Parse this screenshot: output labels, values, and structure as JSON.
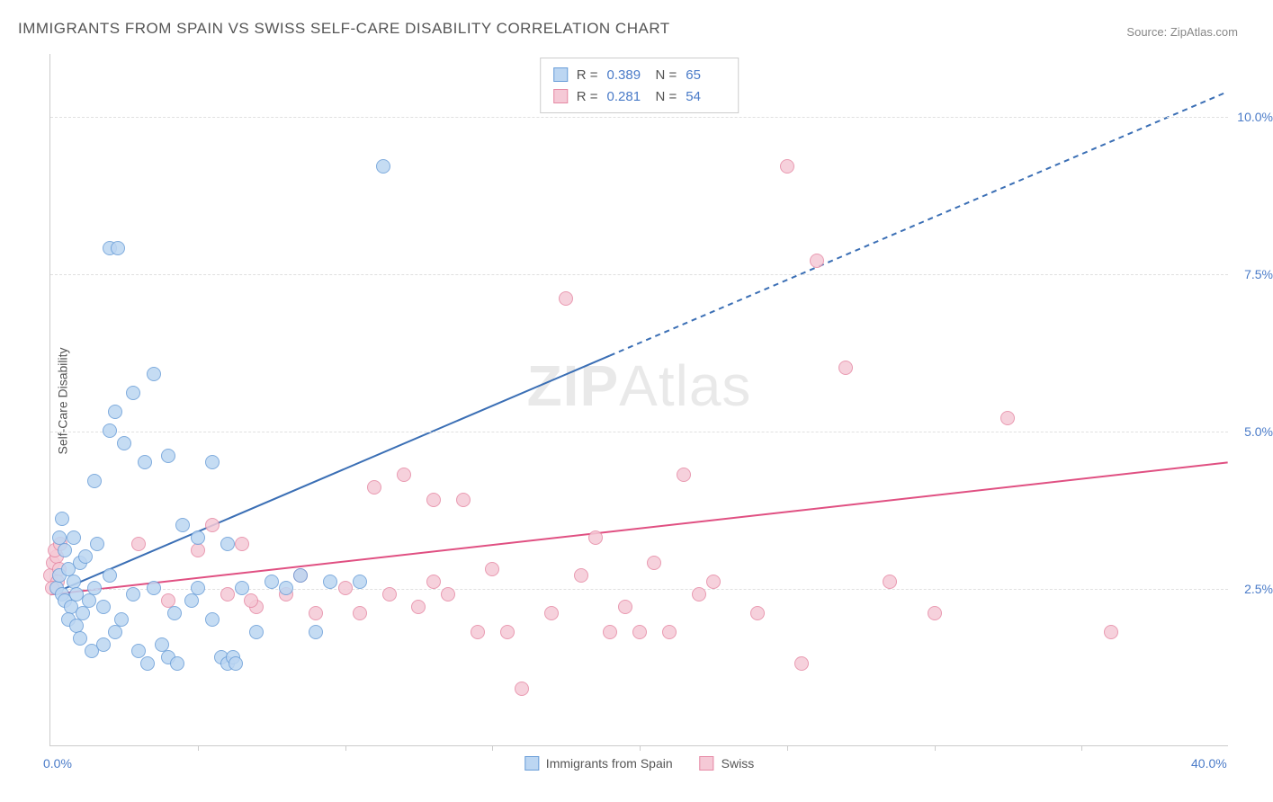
{
  "title": "IMMIGRANTS FROM SPAIN VS SWISS SELF-CARE DISABILITY CORRELATION CHART",
  "source_label": "Source:",
  "source_name": "ZipAtlas.com",
  "ylabel": "Self-Care Disability",
  "watermark_a": "ZIP",
  "watermark_b": "Atlas",
  "xlim": [
    0,
    40
  ],
  "ylim": [
    0,
    11
  ],
  "xtick_labels": [
    "0.0%",
    "40.0%"
  ],
  "xtick_positions": [
    0,
    40
  ],
  "xtick_marks": [
    5,
    10,
    15,
    20,
    25,
    30,
    35
  ],
  "ytick_labels": [
    "2.5%",
    "5.0%",
    "7.5%",
    "10.0%"
  ],
  "ytick_positions": [
    2.5,
    5.0,
    7.5,
    10.0
  ],
  "series": {
    "a": {
      "label": "Immigrants from Spain",
      "fill": "#bcd6f2",
      "stroke": "#6a9ed8",
      "R": "0.389",
      "N": "65",
      "trend": {
        "x1": 0,
        "y1": 2.4,
        "x2": 19,
        "y2": 6.2,
        "dash_to_x": 40,
        "dash_to_y": 10.4,
        "color": "#3b6fb5",
        "width": 2
      },
      "points": [
        [
          0.2,
          2.5
        ],
        [
          0.3,
          2.7
        ],
        [
          0.4,
          2.4
        ],
        [
          0.5,
          2.3
        ],
        [
          0.6,
          2.8
        ],
        [
          0.7,
          2.2
        ],
        [
          0.8,
          2.6
        ],
        [
          0.9,
          2.4
        ],
        [
          1.0,
          2.9
        ],
        [
          1.1,
          2.1
        ],
        [
          0.5,
          3.1
        ],
        [
          0.8,
          3.3
        ],
        [
          1.2,
          3.0
        ],
        [
          0.6,
          2.0
        ],
        [
          0.9,
          1.9
        ],
        [
          1.3,
          2.3
        ],
        [
          1.5,
          2.5
        ],
        [
          1.8,
          2.2
        ],
        [
          2.0,
          2.7
        ],
        [
          2.2,
          1.8
        ],
        [
          1.0,
          1.7
        ],
        [
          1.4,
          1.5
        ],
        [
          1.8,
          1.6
        ],
        [
          2.4,
          2.0
        ],
        [
          2.8,
          2.4
        ],
        [
          3.0,
          1.5
        ],
        [
          3.3,
          1.3
        ],
        [
          3.8,
          1.6
        ],
        [
          4.2,
          2.1
        ],
        [
          4.8,
          2.3
        ],
        [
          1.5,
          4.2
        ],
        [
          2.0,
          5.0
        ],
        [
          2.2,
          5.3
        ],
        [
          2.5,
          4.8
        ],
        [
          2.8,
          5.6
        ],
        [
          3.2,
          4.5
        ],
        [
          3.5,
          5.9
        ],
        [
          4.0,
          4.6
        ],
        [
          4.5,
          3.5
        ],
        [
          5.0,
          3.3
        ],
        [
          5.5,
          2.0
        ],
        [
          5.8,
          1.4
        ],
        [
          6.0,
          1.3
        ],
        [
          6.2,
          1.4
        ],
        [
          6.3,
          1.3
        ],
        [
          5.5,
          4.5
        ],
        [
          5.0,
          2.5
        ],
        [
          6.5,
          2.5
        ],
        [
          7.0,
          1.8
        ],
        [
          7.5,
          2.6
        ],
        [
          8.0,
          2.5
        ],
        [
          8.5,
          2.7
        ],
        [
          9.0,
          1.8
        ],
        [
          9.5,
          2.6
        ],
        [
          10.5,
          2.6
        ],
        [
          6.0,
          3.2
        ],
        [
          2.0,
          7.9
        ],
        [
          2.3,
          7.9
        ],
        [
          11.3,
          9.2
        ],
        [
          3.5,
          2.5
        ],
        [
          4.0,
          1.4
        ],
        [
          4.3,
          1.3
        ],
        [
          0.4,
          3.6
        ],
        [
          0.3,
          3.3
        ],
        [
          1.6,
          3.2
        ]
      ]
    },
    "b": {
      "label": "Swiss",
      "fill": "#f5c9d6",
      "stroke": "#e68aa5",
      "R": "0.281",
      "N": "54",
      "trend": {
        "x1": 0,
        "y1": 2.4,
        "x2": 40,
        "y2": 4.5,
        "color": "#e05082",
        "width": 2
      },
      "points": [
        [
          0.0,
          2.7
        ],
        [
          0.1,
          2.9
        ],
        [
          0.2,
          3.0
        ],
        [
          0.3,
          2.8
        ],
        [
          0.15,
          3.1
        ],
        [
          0.25,
          2.6
        ],
        [
          0.05,
          2.5
        ],
        [
          0.35,
          3.2
        ],
        [
          3.0,
          3.2
        ],
        [
          5.0,
          3.1
        ],
        [
          5.5,
          3.5
        ],
        [
          6.0,
          2.4
        ],
        [
          6.5,
          3.2
        ],
        [
          7.0,
          2.2
        ],
        [
          8.0,
          2.4
        ],
        [
          9.0,
          2.1
        ],
        [
          10.0,
          2.5
        ],
        [
          11.0,
          4.1
        ],
        [
          11.5,
          2.4
        ],
        [
          12.0,
          4.3
        ],
        [
          12.5,
          2.2
        ],
        [
          13.0,
          3.9
        ],
        [
          13.5,
          2.4
        ],
        [
          14.0,
          3.9
        ],
        [
          14.5,
          1.8
        ],
        [
          15.0,
          2.8
        ],
        [
          15.5,
          1.8
        ],
        [
          16.0,
          0.9
        ],
        [
          17.0,
          2.1
        ],
        [
          18.0,
          2.7
        ],
        [
          18.5,
          3.3
        ],
        [
          19.0,
          1.8
        ],
        [
          19.5,
          2.2
        ],
        [
          20.0,
          1.8
        ],
        [
          20.5,
          2.9
        ],
        [
          21.0,
          1.8
        ],
        [
          21.5,
          4.3
        ],
        [
          22.0,
          2.4
        ],
        [
          22.5,
          2.6
        ],
        [
          17.5,
          7.1
        ],
        [
          24.0,
          2.1
        ],
        [
          25.0,
          9.2
        ],
        [
          25.5,
          1.3
        ],
        [
          26.0,
          7.7
        ],
        [
          27.0,
          6.0
        ],
        [
          28.5,
          2.6
        ],
        [
          30.0,
          2.1
        ],
        [
          32.5,
          5.2
        ],
        [
          36.0,
          1.8
        ],
        [
          4.0,
          2.3
        ],
        [
          8.5,
          2.7
        ],
        [
          10.5,
          2.1
        ],
        [
          13.0,
          2.6
        ],
        [
          6.8,
          2.3
        ]
      ]
    }
  },
  "stats_labels": {
    "R": "R =",
    "N": "N ="
  },
  "marker": {
    "radius": 8,
    "stroke_width": 1,
    "opacity": 0.85
  },
  "colors": {
    "title": "#555555",
    "axis": "#cccccc",
    "grid": "#e0e0e0",
    "tick_text": "#4a7bc8",
    "background": "#ffffff"
  },
  "font": {
    "title_size": 17,
    "label_size": 14,
    "stats_size": 15
  }
}
